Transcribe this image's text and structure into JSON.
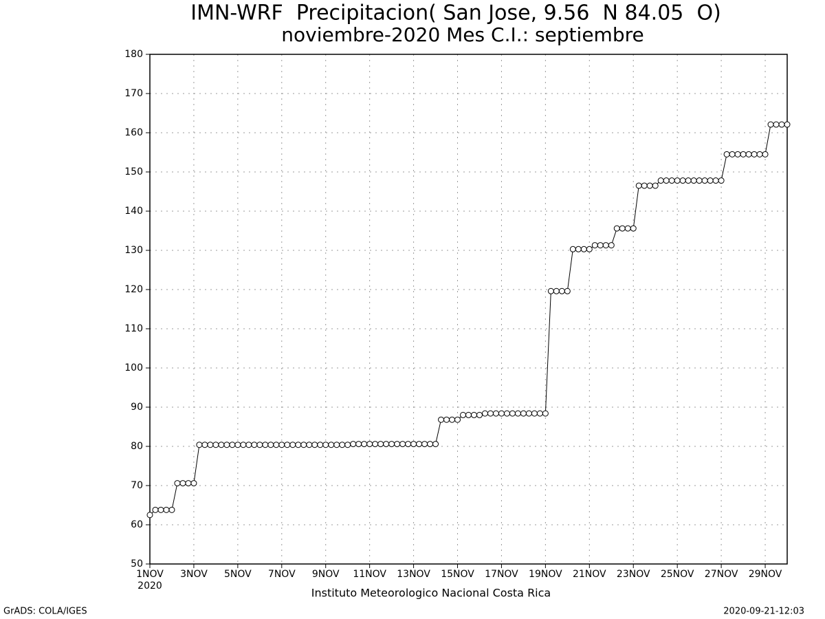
{
  "chart_data": {
    "type": "line",
    "title": "IMN-WRF  Precipitacion( San Jose, 9.56  N 84.05  O)",
    "subtitle": "noviembre-2020 Mes C.I.: septiembre",
    "caption": "Instituto Meteorologico Nacional Costa Rica",
    "credit": "GrADS: COLA/IGES",
    "timestamp": "2020-09-21-12:03",
    "x_year_label": "2020",
    "color": "#000000",
    "marker_fill": "#ffffff",
    "grid": true,
    "xlim": [
      0,
      29
    ],
    "ylim": [
      50,
      180
    ],
    "yticks": [
      50,
      60,
      70,
      80,
      90,
      100,
      110,
      120,
      130,
      140,
      150,
      160,
      170,
      180
    ],
    "xticks": [
      {
        "value": 0,
        "label": "1NOV"
      },
      {
        "value": 2,
        "label": "3NOV"
      },
      {
        "value": 4,
        "label": "5NOV"
      },
      {
        "value": 6,
        "label": "7NOV"
      },
      {
        "value": 8,
        "label": "9NOV"
      },
      {
        "value": 10,
        "label": "11NOV"
      },
      {
        "value": 12,
        "label": "13NOV"
      },
      {
        "value": 14,
        "label": "15NOV"
      },
      {
        "value": 16,
        "label": "17NOV"
      },
      {
        "value": 18,
        "label": "19NOV"
      },
      {
        "value": 20,
        "label": "21NOV"
      },
      {
        "value": 22,
        "label": "23NOV"
      },
      {
        "value": 24,
        "label": "25NOV"
      },
      {
        "value": 26,
        "label": "27NOV"
      },
      {
        "value": 28,
        "label": "29NOV"
      }
    ],
    "x": [
      0,
      0.25,
      0.5,
      0.75,
      1,
      1.25,
      1.5,
      1.75,
      2,
      2.25,
      2.5,
      2.75,
      3,
      3.25,
      3.5,
      3.75,
      4,
      4.25,
      4.5,
      4.75,
      5,
      5.25,
      5.5,
      5.75,
      6,
      6.25,
      6.5,
      6.75,
      7,
      7.25,
      7.5,
      7.75,
      8,
      8.25,
      8.5,
      8.75,
      9,
      9.25,
      9.5,
      9.75,
      10,
      10.25,
      10.5,
      10.75,
      11,
      11.25,
      11.5,
      11.75,
      12,
      12.25,
      12.5,
      12.75,
      13,
      13.25,
      13.5,
      13.75,
      14,
      14.25,
      14.5,
      14.75,
      15,
      15.25,
      15.5,
      15.75,
      16,
      16.25,
      16.5,
      16.75,
      17,
      17.25,
      17.5,
      17.75,
      18,
      18.25,
      18.5,
      18.75,
      19,
      19.25,
      19.5,
      19.75,
      20,
      20.25,
      20.5,
      20.75,
      21,
      21.25,
      21.5,
      21.75,
      22,
      22.25,
      22.5,
      22.75,
      23,
      23.25,
      23.5,
      23.75,
      24,
      24.25,
      24.5,
      24.75,
      25,
      25.25,
      25.5,
      25.75,
      26,
      26.25,
      26.5,
      26.75,
      27,
      27.25,
      27.5,
      27.75,
      28,
      28.25,
      28.5,
      28.75,
      29
    ],
    "values": [
      62.5,
      63.8,
      63.8,
      63.8,
      63.8,
      70.6,
      70.6,
      70.6,
      70.6,
      80.4,
      80.4,
      80.4,
      80.4,
      80.4,
      80.4,
      80.4,
      80.4,
      80.4,
      80.4,
      80.4,
      80.4,
      80.4,
      80.4,
      80.4,
      80.4,
      80.4,
      80.4,
      80.4,
      80.4,
      80.4,
      80.4,
      80.4,
      80.4,
      80.4,
      80.4,
      80.4,
      80.4,
      80.6,
      80.6,
      80.6,
      80.6,
      80.6,
      80.6,
      80.6,
      80.6,
      80.6,
      80.6,
      80.6,
      80.6,
      80.6,
      80.6,
      80.6,
      80.6,
      86.8,
      86.8,
      86.8,
      86.8,
      88.0,
      88.0,
      88.0,
      88.0,
      88.4,
      88.4,
      88.4,
      88.4,
      88.4,
      88.4,
      88.4,
      88.4,
      88.4,
      88.4,
      88.4,
      88.4,
      119.6,
      119.6,
      119.6,
      119.6,
      130.3,
      130.3,
      130.3,
      130.3,
      131.3,
      131.3,
      131.3,
      131.3,
      135.6,
      135.6,
      135.6,
      135.6,
      146.5,
      146.5,
      146.5,
      146.5,
      147.8,
      147.8,
      147.8,
      147.8,
      147.8,
      147.8,
      147.8,
      147.8,
      147.8,
      147.8,
      147.8,
      147.8,
      154.5,
      154.5,
      154.5,
      154.5,
      154.5,
      154.5,
      154.5,
      154.5,
      162.1,
      162.1,
      162.1,
      162.1
    ]
  }
}
